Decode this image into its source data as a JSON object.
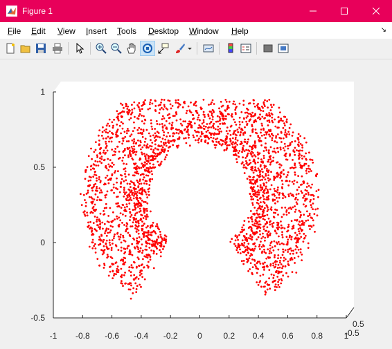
{
  "window": {
    "title": "Figure 1"
  },
  "menu": [
    "File",
    "Edit",
    "View",
    "Insert",
    "Tools",
    "Desktop",
    "Window",
    "Help"
  ],
  "toolbar": {
    "buttons": [
      "new-figure-icon",
      "open-icon",
      "save-icon",
      "print-icon",
      "edit-plot-arrow-icon",
      "zoom-in-icon",
      "zoom-out-icon",
      "pan-hand-icon",
      "rotate-3d-icon",
      "data-cursor-icon",
      "brush-icon",
      "brush-dropdown-icon",
      "link-plot-icon",
      "insert-colorbar-icon",
      "insert-legend-icon",
      "hide-plot-tools-icon",
      "show-plot-tools-icon"
    ],
    "active": "rotate-3d-icon"
  },
  "colors": {
    "titlebar": "#e8005a",
    "points": "#ff0000",
    "axes": "#262626"
  },
  "chart_data": {
    "type": "scatter",
    "description_shape": "3D point cloud forming a partial torus / horseshoe (open at bottom), viewed in 3D rotate mode",
    "marker_color": "#ff0000",
    "x_ticks": [
      "-1",
      "-0.8",
      "-0.6",
      "-0.4",
      "-0.2",
      "0",
      "0.2",
      "0.4",
      "0.6",
      "0.8",
      "1"
    ],
    "y_ticks": [
      "1",
      "0.5",
      "0",
      "-0.5"
    ],
    "z_ticks": [
      "0.5",
      "-0.5"
    ],
    "xlim": [
      -1,
      1
    ],
    "ylim": [
      -0.5,
      1
    ],
    "outer_radius_approx": 0.8,
    "inner_radius_approx": 0.3,
    "point_count_approx": 4000,
    "title": "",
    "xlabel": "",
    "ylabel": ""
  }
}
